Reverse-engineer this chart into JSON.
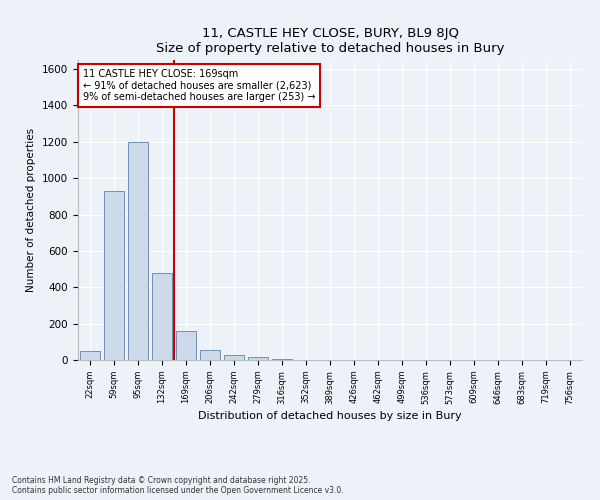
{
  "title1": "11, CASTLE HEY CLOSE, BURY, BL9 8JQ",
  "title2": "Size of property relative to detached houses in Bury",
  "xlabel": "Distribution of detached houses by size in Bury",
  "ylabel": "Number of detached properties",
  "categories": [
    "22sqm",
    "59sqm",
    "95sqm",
    "132sqm",
    "169sqm",
    "206sqm",
    "242sqm",
    "279sqm",
    "316sqm",
    "352sqm",
    "389sqm",
    "426sqm",
    "462sqm",
    "499sqm",
    "536sqm",
    "573sqm",
    "609sqm",
    "646sqm",
    "683sqm",
    "719sqm",
    "756sqm"
  ],
  "values": [
    50,
    930,
    1200,
    480,
    160,
    55,
    25,
    15,
    5,
    2,
    0,
    0,
    0,
    0,
    0,
    0,
    0,
    0,
    0,
    0,
    0
  ],
  "bar_color": "#ccd9e8",
  "bar_edge_color": "#7090b8",
  "annotation_line1": "11 CASTLE HEY CLOSE: 169sqm",
  "annotation_line2": "← 91% of detached houses are smaller (2,623)",
  "annotation_line3": "9% of semi-detached houses are larger (253) →",
  "ylim": [
    0,
    1650
  ],
  "yticks": [
    0,
    200,
    400,
    600,
    800,
    1000,
    1200,
    1400,
    1600
  ],
  "footnote1": "Contains HM Land Registry data © Crown copyright and database right 2025.",
  "footnote2": "Contains public sector information licensed under the Open Government Licence v3.0.",
  "bg_color": "#edf2f8",
  "grid_color": "#ffffff",
  "annotation_box_edge": "#cc0000",
  "red_line_color": "#cc0000"
}
